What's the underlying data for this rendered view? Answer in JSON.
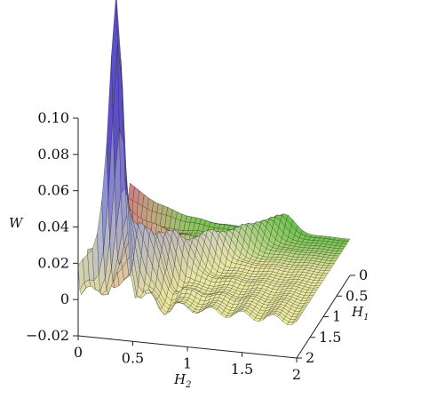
{
  "chart_data": {
    "type": "surface3d",
    "title": "",
    "zlabel": "W",
    "xlabel": "H",
    "xlabel_sub": "2",
    "ylabel": "H",
    "ylabel_sub": "1",
    "zlim": [
      -0.02,
      0.1
    ],
    "xlim": [
      0,
      2
    ],
    "ylim": [
      0,
      2
    ],
    "z_ticks": [
      {
        "value": -0.02,
        "label": "−0.02"
      },
      {
        "value": 0,
        "label": "0"
      },
      {
        "value": 0.02,
        "label": "0.02"
      },
      {
        "value": 0.04,
        "label": "0.04"
      },
      {
        "value": 0.06,
        "label": "0.06"
      },
      {
        "value": 0.08,
        "label": "0.08"
      },
      {
        "value": 0.1,
        "label": "0.10"
      }
    ],
    "x_ticks": [
      {
        "value": 0,
        "label": "0"
      },
      {
        "value": 0.5,
        "label": "0.5"
      },
      {
        "value": 1,
        "label": "1"
      },
      {
        "value": 1.5,
        "label": "1.5"
      },
      {
        "value": 2,
        "label": "2"
      }
    ],
    "y_ticks": [
      {
        "value": 0,
        "label": "0"
      },
      {
        "value": 0.5,
        "label": "0.5"
      },
      {
        "value": 1,
        "label": "1"
      },
      {
        "value": 1.5,
        "label": "1.5"
      },
      {
        "value": 2,
        "label": "2"
      }
    ],
    "colormap": [
      "#5b4fc9",
      "#9aa8d8",
      "#f4f09a",
      "#6cc24a",
      "#d2546f"
    ]
  }
}
